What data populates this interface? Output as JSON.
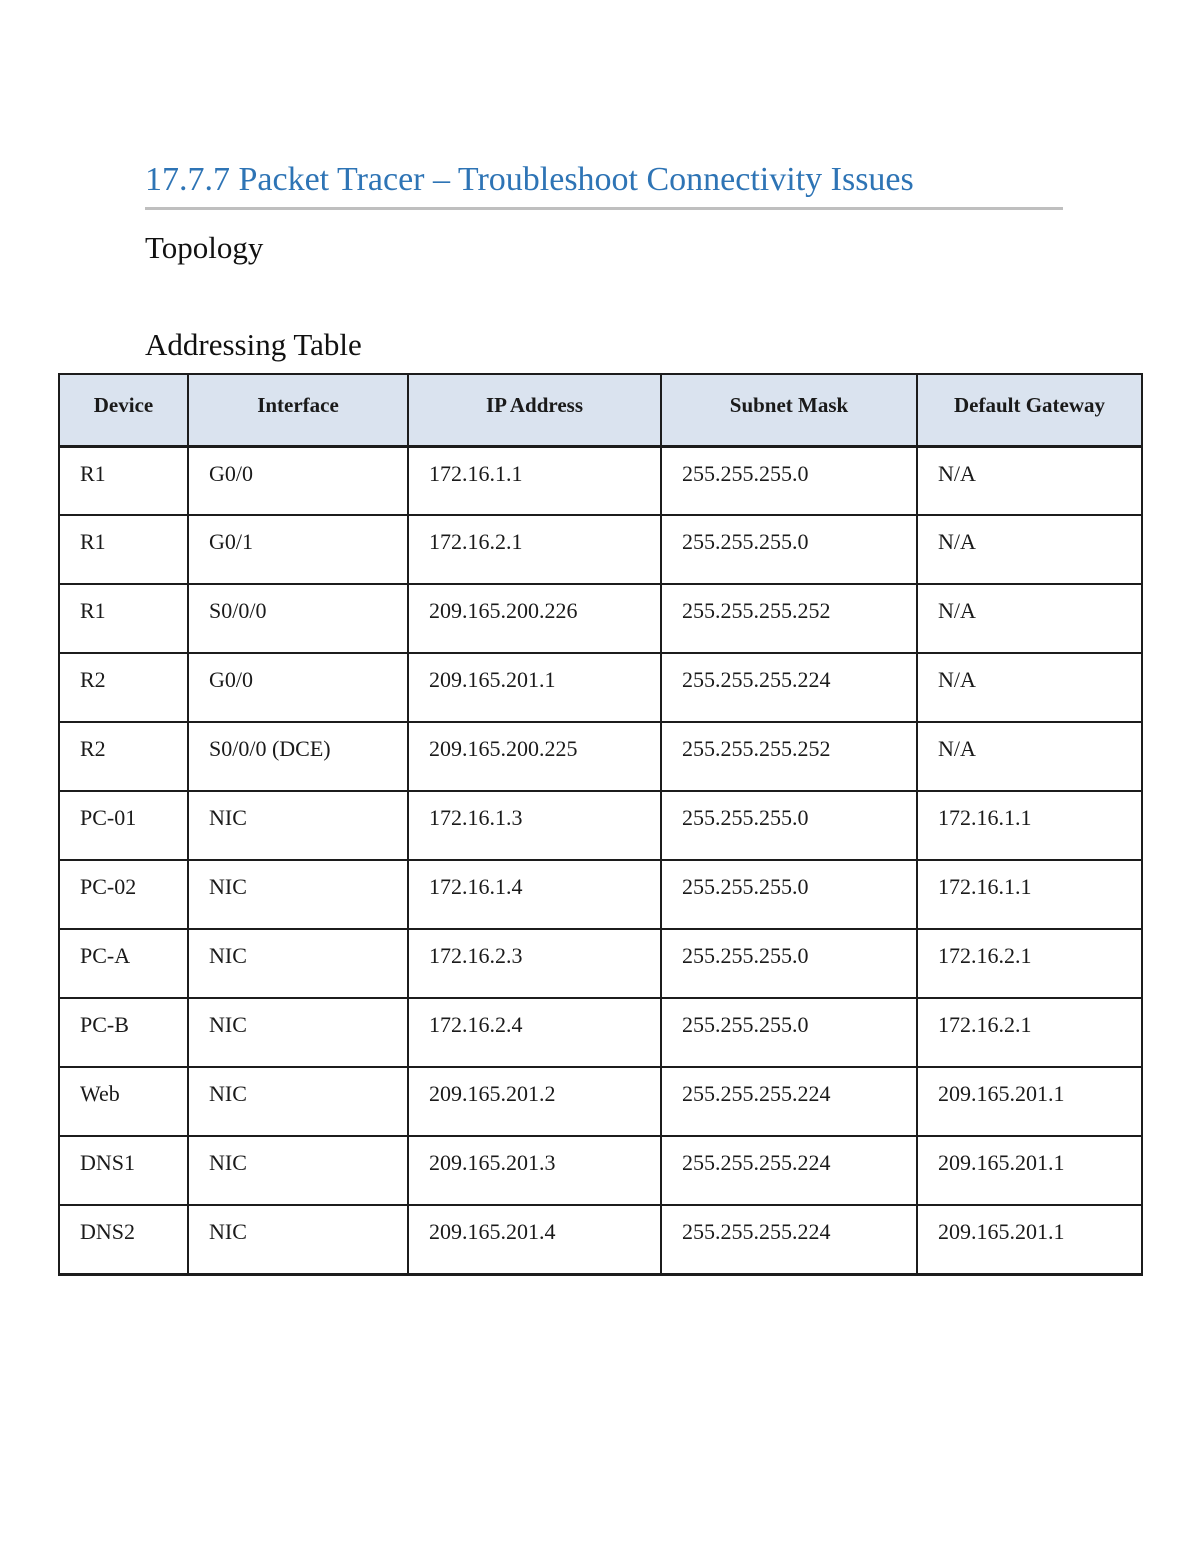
{
  "page": {
    "title": "17.7.7 Packet Tracer – Troubleshoot Connectivity Issues",
    "section_topology": "Topology",
    "section_addressing": "Addressing Table"
  },
  "colors": {
    "title_blue": "#2E74B5",
    "rule_gray": "#BFBFBF",
    "header_fill": "#DAE3EF",
    "table_border": "#1C1C1C"
  },
  "table": {
    "headers": [
      "Device",
      "Interface",
      "IP Address",
      "Subnet Mask",
      "Default Gateway"
    ],
    "rows": [
      [
        "R1",
        "G0/0",
        "172.16.1.1",
        "255.255.255.0",
        "N/A"
      ],
      [
        "R1",
        "G0/1",
        "172.16.2.1",
        "255.255.255.0",
        "N/A"
      ],
      [
        "R1",
        "S0/0/0",
        "209.165.200.226",
        "255.255.255.252",
        "N/A"
      ],
      [
        "R2",
        "G0/0",
        "209.165.201.1",
        "255.255.255.224",
        "N/A"
      ],
      [
        "R2",
        "S0/0/0 (DCE)",
        "209.165.200.225",
        "255.255.255.252",
        "N/A"
      ],
      [
        "PC-01",
        "NIC",
        "172.16.1.3",
        "255.255.255.0",
        "172.16.1.1"
      ],
      [
        "PC-02",
        "NIC",
        "172.16.1.4",
        "255.255.255.0",
        "172.16.1.1"
      ],
      [
        "PC-A",
        "NIC",
        "172.16.2.3",
        "255.255.255.0",
        "172.16.2.1"
      ],
      [
        "PC-B",
        "NIC",
        "172.16.2.4",
        "255.255.255.0",
        "172.16.2.1"
      ],
      [
        "Web",
        "NIC",
        "209.165.201.2",
        "255.255.255.224",
        "209.165.201.1"
      ],
      [
        "DNS1",
        "NIC",
        "209.165.201.3",
        "255.255.255.224",
        "209.165.201.1"
      ],
      [
        "DNS2",
        "NIC",
        "209.165.201.4",
        "255.255.255.224",
        "209.165.201.1"
      ]
    ]
  }
}
